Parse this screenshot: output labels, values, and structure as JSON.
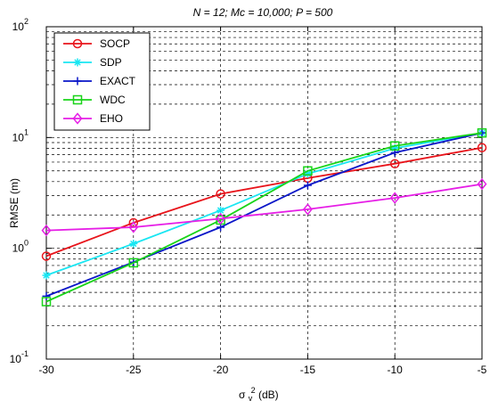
{
  "chart_data": {
    "type": "line",
    "title": "N = 12; Mc = 10,000; P = 500",
    "xlabel_base": "σ",
    "xlabel_sup": "2",
    "xlabel_sub": "v",
    "xlabel_unit": " (dB)",
    "ylabel": "RMSE (m)",
    "x": [
      -30,
      -25,
      -20,
      -15,
      -10,
      -5
    ],
    "xlim": [
      -30,
      -5
    ],
    "ylim": [
      0.1,
      100
    ],
    "yscale": "log",
    "x_ticks": [
      "-30",
      "-25",
      "-20",
      "-15",
      "-10",
      "-5"
    ],
    "y_ticks": [
      {
        "base": "10",
        "exp": "-1"
      },
      {
        "base": "10",
        "exp": "0"
      },
      {
        "base": "10",
        "exp": "1"
      },
      {
        "base": "10",
        "exp": "2"
      }
    ],
    "grid": true,
    "legend_position": "top-left",
    "series": [
      {
        "name": "SOCP",
        "color": "#e8141b",
        "marker": "circle",
        "values": [
          0.85,
          1.7,
          3.1,
          4.3,
          5.8,
          8.1
        ]
      },
      {
        "name": "SDP",
        "color": "#19e6f2",
        "marker": "star",
        "values": [
          0.57,
          1.1,
          2.2,
          4.7,
          8.0,
          11.0
        ]
      },
      {
        "name": "EXACT",
        "color": "#0a16c8",
        "marker": "plus",
        "values": [
          0.37,
          0.75,
          1.55,
          3.7,
          7.3,
          11.0
        ]
      },
      {
        "name": "WDC",
        "color": "#19d419",
        "marker": "square",
        "values": [
          0.33,
          0.74,
          1.8,
          5.0,
          8.4,
          11.0
        ]
      },
      {
        "name": "EHO",
        "color": "#e61ee6",
        "marker": "diamond",
        "values": [
          1.45,
          1.55,
          1.85,
          2.25,
          2.85,
          3.8
        ]
      }
    ]
  }
}
